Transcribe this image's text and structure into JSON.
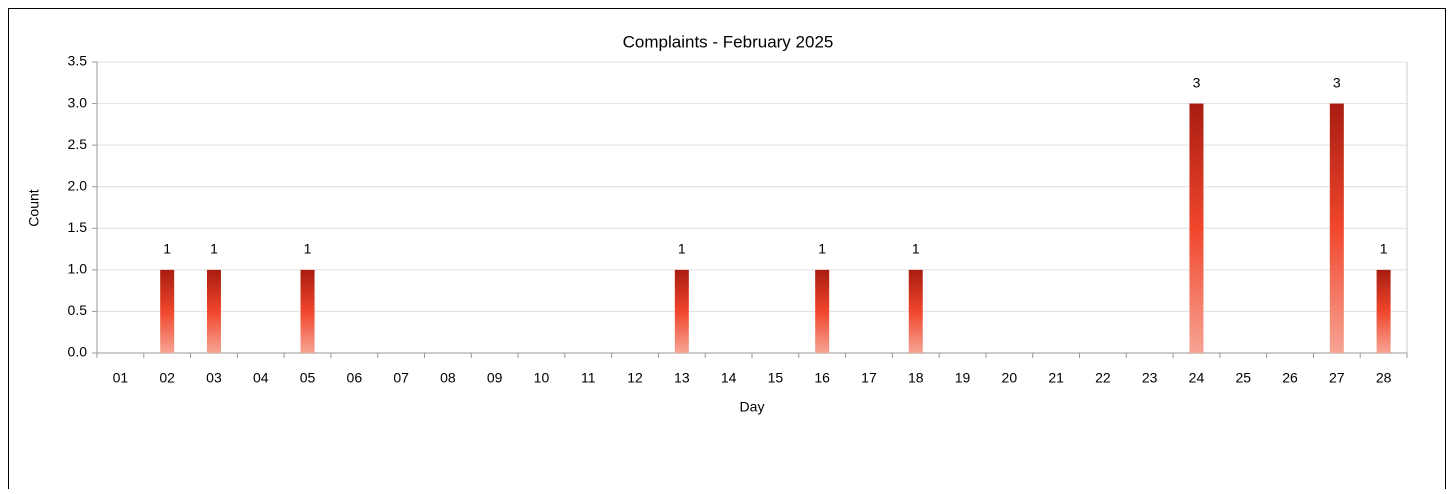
{
  "chart_data": {
    "type": "bar",
    "title": "Complaints - February 2025",
    "x_label": "Day",
    "y_label": "Count",
    "categories": [
      "01",
      "02",
      "03",
      "04",
      "05",
      "06",
      "07",
      "08",
      "09",
      "10",
      "11",
      "12",
      "13",
      "14",
      "15",
      "16",
      "17",
      "18",
      "19",
      "20",
      "21",
      "22",
      "23",
      "24",
      "25",
      "26",
      "27",
      "28"
    ],
    "values": [
      0,
      1,
      1,
      0,
      1,
      0,
      0,
      0,
      0,
      0,
      0,
      0,
      1,
      0,
      0,
      1,
      0,
      1,
      0,
      0,
      0,
      0,
      0,
      3,
      0,
      0,
      3,
      1
    ],
    "gradient": [
      "#a81c10",
      "#f0462c",
      "#f7a494"
    ],
    "ylim": [
      0,
      3.5
    ],
    "yticks": [
      {
        "value": 0,
        "label": "0.0"
      },
      {
        "value": 0.5,
        "label": "0.5"
      },
      {
        "value": 1,
        "label": "1.0"
      },
      {
        "value": 1.5,
        "label": "1.5"
      },
      {
        "value": 2,
        "label": "2.0"
      },
      {
        "value": 2.5,
        "label": "2.5"
      },
      {
        "value": 3,
        "label": "3.0"
      },
      {
        "value": 3.5,
        "label": "3.5"
      }
    ],
    "grid": true
  }
}
